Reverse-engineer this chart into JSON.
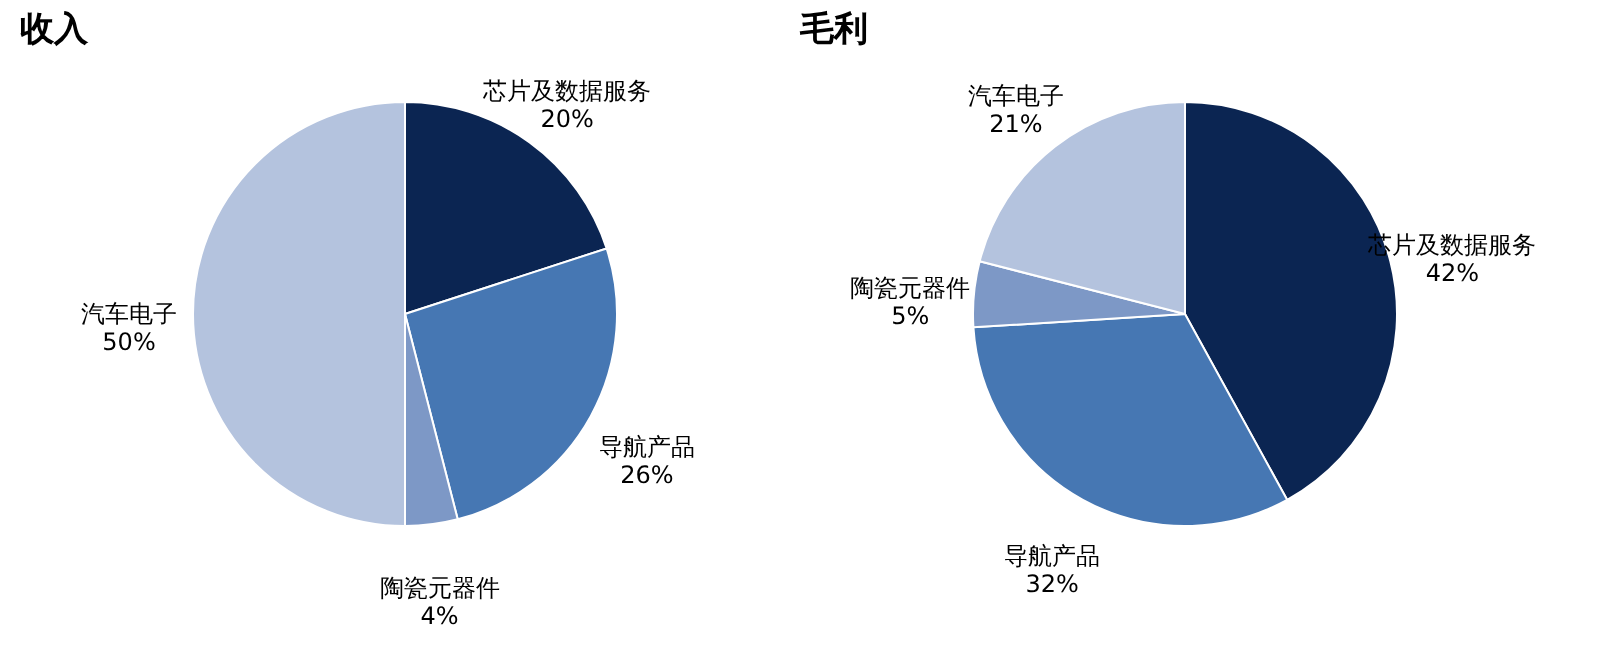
{
  "chart_data": [
    {
      "type": "pie",
      "title": "收入",
      "categories": [
        "芯片及数据服务",
        "导航产品",
        "陶瓷元器件",
        "汽车电子"
      ],
      "values": [
        20,
        26,
        4,
        50
      ],
      "value_labels": [
        "20%",
        "26%",
        "4%",
        "50%"
      ],
      "colors": [
        "#0b2552",
        "#4677b3",
        "#7d98c6",
        "#b4c3de"
      ]
    },
    {
      "type": "pie",
      "title": "毛利",
      "categories": [
        "芯片及数据服务",
        "导航产品",
        "陶瓷元器件",
        "汽车电子"
      ],
      "values": [
        42,
        32,
        5,
        21
      ],
      "value_labels": [
        "42%",
        "32%",
        "5%",
        "21%"
      ],
      "colors": [
        "#0b2552",
        "#4677b3",
        "#7d98c6",
        "#b4c3de"
      ]
    }
  ]
}
